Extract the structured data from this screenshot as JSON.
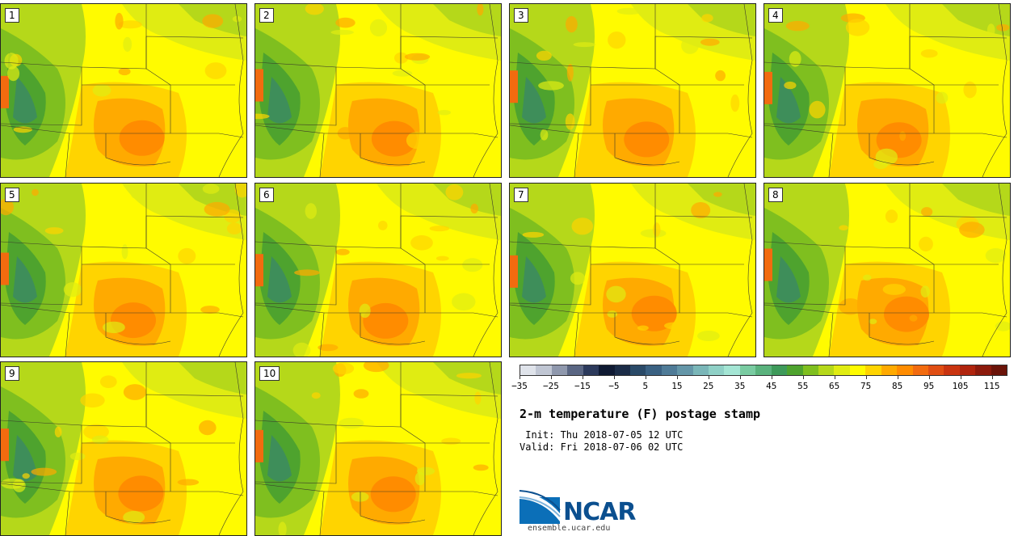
{
  "panels": [
    {
      "label": "1"
    },
    {
      "label": "2"
    },
    {
      "label": "3"
    },
    {
      "label": "4"
    },
    {
      "label": "5"
    },
    {
      "label": "6"
    },
    {
      "label": "7"
    },
    {
      "label": "8"
    },
    {
      "label": "9"
    },
    {
      "label": "10"
    }
  ],
  "colorbar": {
    "colors": [
      "#dfe3ea",
      "#c0c6d3",
      "#8f98ad",
      "#5a6683",
      "#2c3a5c",
      "#0f1a33",
      "#1b2c47",
      "#2a4a68",
      "#3a6182",
      "#4f7b97",
      "#6496a8",
      "#7ab6b8",
      "#8fd0c6",
      "#a4e5d4",
      "#79cba1",
      "#5ab27d",
      "#3e9a5a",
      "#4ea32e",
      "#7fbf1f",
      "#b5d81a",
      "#e0ec12",
      "#fffb00",
      "#ffd400",
      "#ffaa00",
      "#ff8c00",
      "#f26b0f",
      "#e04e13",
      "#c93410",
      "#b0240d",
      "#8c1a0c",
      "#6b1409"
    ],
    "tick_labels": [
      "−35",
      "−25",
      "−15",
      "−5",
      "5",
      "15",
      "25",
      "35",
      "45",
      "55",
      "65",
      "75",
      "85",
      "95",
      "105",
      "115"
    ]
  },
  "title": "2-m temperature (F) postage stamp",
  "init_text": " Init: Thu 2018-07-05 12 UTC",
  "valid_text": "Valid: Fri 2018-07-06 02 UTC",
  "logo": {
    "name": "NCAR",
    "url": "ensemble.ucar.edu"
  }
}
